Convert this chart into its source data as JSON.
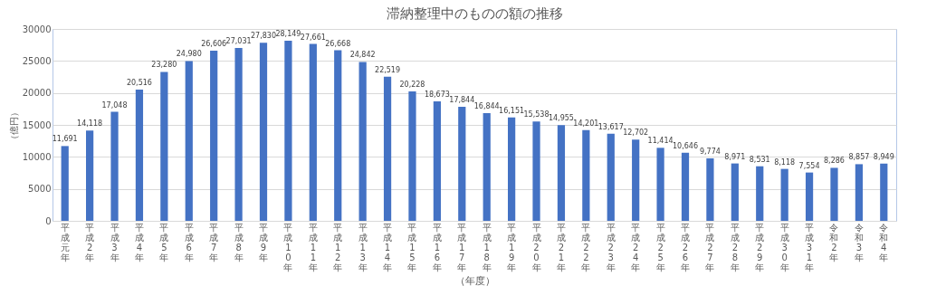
{
  "chart_data": {
    "type": "bar",
    "title": "滞納整理中のものの額の推移",
    "xlabel": "（年度）",
    "ylabel": "（億円）",
    "categories": [
      "平成元年",
      "平成2年",
      "平成3年",
      "平成4年",
      "平成5年",
      "平成6年",
      "平成7年",
      "平成8年",
      "平成9年",
      "平成10年",
      "平成11年",
      "平成12年",
      "平成13年",
      "平成14年",
      "平成15年",
      "平成16年",
      "平成17年",
      "平成18年",
      "平成19年",
      "平成20年",
      "平成21年",
      "平成22年",
      "平成23年",
      "平成24年",
      "平成25年",
      "平成26年",
      "平成27年",
      "平成28年",
      "平成29年",
      "平成30年",
      "平成31年",
      "令和2年",
      "令和3年",
      "令和4年"
    ],
    "values": [
      11691,
      14118,
      17048,
      20516,
      23280,
      24980,
      26606,
      27031,
      27830,
      28149,
      27661,
      26668,
      24842,
      22519,
      20228,
      18673,
      17844,
      16844,
      16151,
      15538,
      14955,
      14201,
      13617,
      12702,
      11414,
      10646,
      9774,
      8971,
      8531,
      8118,
      7554,
      8286,
      8857,
      8949
    ],
    "color": "#4472c4",
    "ylim": [
      0,
      30000
    ],
    "yticks": [
      0,
      5000,
      10000,
      15000,
      20000,
      25000,
      30000
    ],
    "grid": "y",
    "value_labels": [
      "11,691",
      "14,118",
      "17,048",
      "20,516",
      "23,280",
      "24,980",
      "26,606",
      "27,031",
      "27,830",
      "28,149",
      "27,661",
      "26,668",
      "24,842",
      "22,519",
      "20,228",
      "18,673",
      "17,844",
      "16,844",
      "16,151",
      "15,538",
      "14,955",
      "14,201",
      "13,617",
      "12,702",
      "11,414",
      "10,646",
      "9,774",
      "8,971",
      "8,531",
      "8,118",
      "7,554",
      "8,286",
      "8,857",
      "8,949"
    ]
  }
}
